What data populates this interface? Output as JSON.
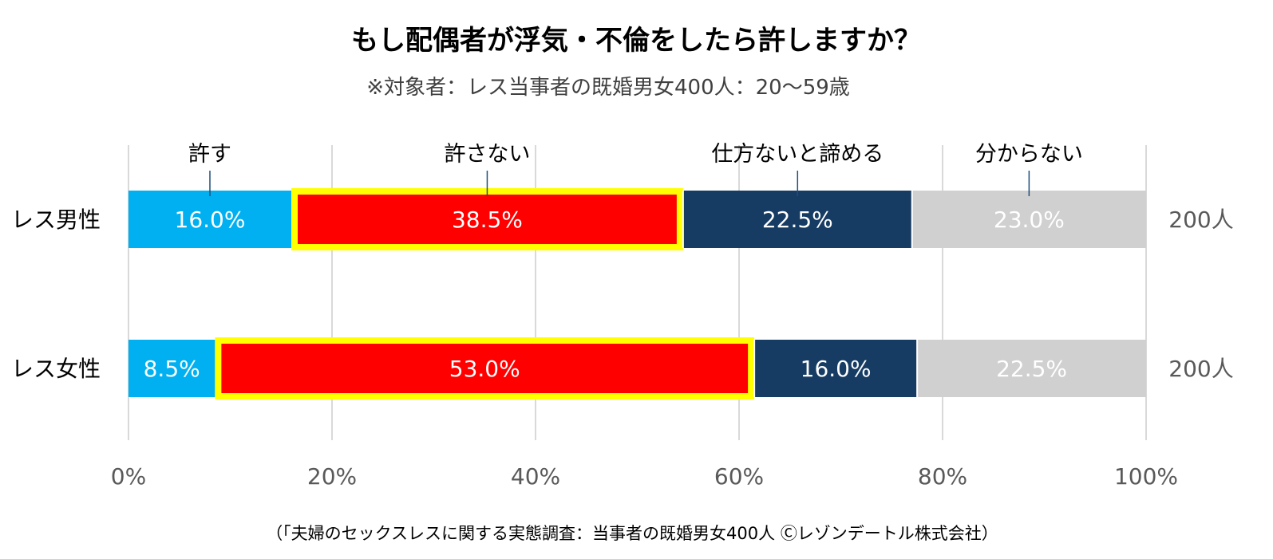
{
  "chart_data": {
    "type": "bar",
    "orientation": "horizontal",
    "stacked": true,
    "percent_axis": true,
    "title": "もし配偶者が浮気・不倫をしたら許しますか？",
    "subtitle": "※対象者：レス当事者の既婚男女400人：20～59歳",
    "categories": [
      "レス男性",
      "レス女性"
    ],
    "sample_sizes": [
      "200人",
      "200人"
    ],
    "series": [
      {
        "name": "許す",
        "color": "#00B0F0",
        "text_color": "#FFFFFF",
        "values": [
          16.0,
          8.5
        ],
        "labels": [
          "16.0%",
          "8.5%"
        ]
      },
      {
        "name": "許さない",
        "color": "#FF0000",
        "text_color": "#FFFFFF",
        "values": [
          38.5,
          53.0
        ],
        "labels": [
          "38.5%",
          "53.0%"
        ],
        "highlight": "#FFFF00",
        "legend_color": "#E00000"
      },
      {
        "name": "仕方ないと諦める",
        "color": "#173C64",
        "text_color": "#FFFFFF",
        "values": [
          22.5,
          16.0
        ],
        "labels": [
          "22.5%",
          "16.0%"
        ]
      },
      {
        "name": "分からない",
        "color": "#D0D0D0",
        "text_color": "#FFFFFF",
        "values": [
          23.0,
          22.5
        ],
        "labels": [
          "23.0%",
          "22.5%"
        ]
      }
    ],
    "xlim": [
      0,
      100
    ],
    "x_ticks": [
      0,
      20,
      40,
      60,
      80,
      100
    ],
    "x_tick_labels": [
      "0%",
      "20%",
      "40%",
      "60%",
      "80%",
      "100%"
    ],
    "grid": true,
    "legend_position": "top",
    "source": "（「夫婦のセックスレスに関する実態調査：当事者の既婚男女400人 Ⓒレゾンデートル株式会社）"
  }
}
